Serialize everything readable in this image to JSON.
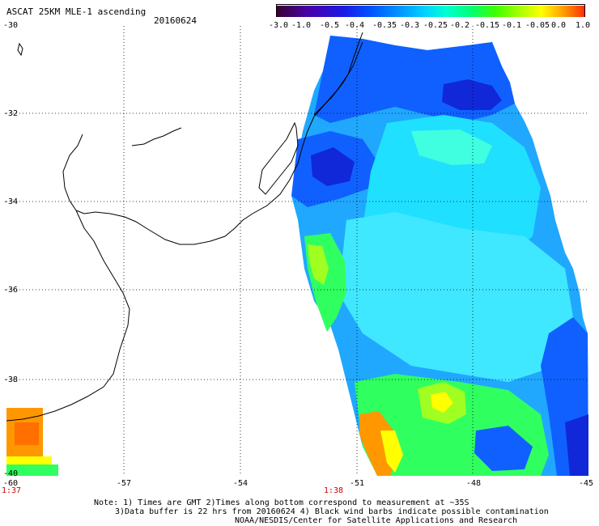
{
  "header": {
    "title": "ASCAT 25KM MLE-1 ascending",
    "date": "20160624"
  },
  "colorbar": {
    "labels": [
      "-3.0",
      "-1.0",
      "-0.5",
      "-0.4",
      "-0.35",
      "-0.3",
      "-0.25",
      "-0.2",
      "-0.15",
      "-0.1",
      "-0.05",
      "0.0",
      "1.0"
    ],
    "colors": [
      "#3a0030",
      "#4b00a8",
      "#1a1ae6",
      "#0050ff",
      "#0096ff",
      "#00d2ff",
      "#00ffd2",
      "#00ff78",
      "#3cff00",
      "#b4ff00",
      "#ffff00",
      "#ffa000",
      "#ff3000"
    ]
  },
  "axes": {
    "lat_labels": [
      "-30",
      "-32",
      "-34",
      "-36",
      "-38",
      "-40"
    ],
    "lon_labels": [
      "-60",
      "-57",
      "-54",
      "-51",
      "-48",
      "-45"
    ]
  },
  "time_labels": {
    "left": "1:37",
    "middle": "1:38"
  },
  "notes": {
    "line1": "Note: 1) Times are GMT 2)Times along bottom correspond to measurement at ~35S",
    "line2": "3)Data buffer is 22 hrs from 20160624 4) Black wind barbs indicate possible contamination",
    "line3": "NOAA/NESDIS/Center for Satellite Applications and Research"
  },
  "map": {
    "colors": {
      "background": "#ffffff",
      "coastline": "#000000",
      "grid": "#000000",
      "deep_blue": "#1028d8",
      "blue": "#1060ff",
      "light_blue": "#20a8ff",
      "cyan": "#20e0ff",
      "aqua": "#40ffe0",
      "green": "#30ff60",
      "lime": "#a0ff20",
      "yellow": "#ffff00",
      "orange": "#ff9800",
      "dark_orange": "#ff7000"
    }
  }
}
